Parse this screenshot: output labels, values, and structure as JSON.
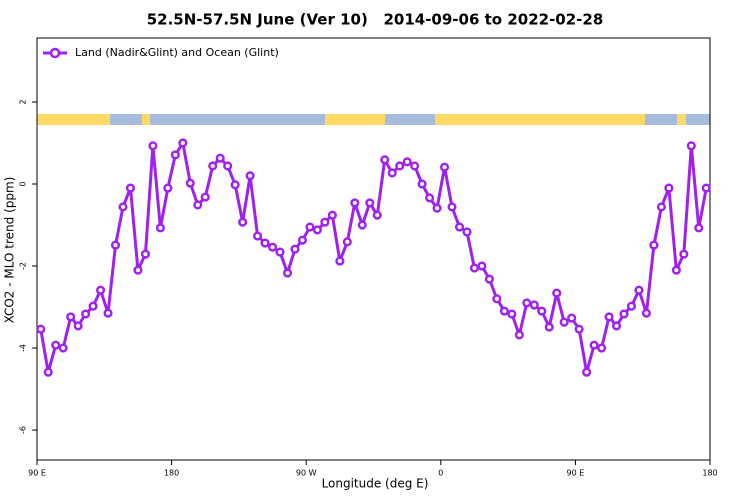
{
  "chart_data": {
    "type": "line",
    "title": "52.5N-57.5N June (Ver 10)   2014-09-06 to 2022-02-28",
    "x_label": "Longitude (deg E)",
    "y_label": "XCO2 - MLO trend (ppm)",
    "x": [
      92.5,
      97.5,
      102.5,
      107.5,
      112.5,
      117.5,
      122.5,
      127.5,
      132.5,
      137.5,
      142.5,
      147.5,
      152.5,
      157.5,
      162.5,
      167.5,
      172.5,
      177.5,
      182.5,
      187.5,
      192.5,
      197.5,
      202.5,
      207.5,
      212.5,
      217.5,
      222.5,
      227.5,
      232.5,
      237.5,
      242.5,
      247.5,
      252.5,
      257.5,
      262.5,
      267.5,
      272.5,
      277.5,
      282.5,
      287.5,
      292.5,
      297.5,
      302.5,
      307.5,
      312.5,
      317.5,
      322.5,
      327.5,
      332.5,
      337.5,
      342.5,
      347.5,
      352.5,
      357.5,
      362.5,
      367.5,
      372.5,
      377.5,
      382.5,
      387.5,
      392.5,
      397.5,
      402.5,
      407.5,
      412.5,
      417.5,
      422.5,
      427.5,
      432.5,
      437.5,
      442.5,
      447.5,
      452.5,
      457.5,
      462.5,
      467.5,
      472.5,
      477.5,
      482.5,
      487.5,
      492.5,
      497.5,
      502.5,
      507.5,
      512.5,
      517.5,
      522.5,
      527.5,
      532.5,
      537.5
    ],
    "series": [
      {
        "name": "Land (Nadir&Glint) and Ocean (Glint)",
        "color": "#a020f0",
        "values": [
          -3.54,
          -4.59,
          -3.93,
          -4.0,
          -3.24,
          -3.46,
          -3.17,
          -2.98,
          -2.59,
          -3.15,
          -1.49,
          -0.56,
          -0.1,
          -2.1,
          -1.71,
          0.93,
          -1.07,
          -0.1,
          0.71,
          1.0,
          0.02,
          -0.51,
          -0.32,
          0.44,
          0.63,
          0.44,
          -0.02,
          -0.93,
          0.2,
          -1.27,
          -1.44,
          -1.54,
          -1.66,
          -2.17,
          -1.59,
          -1.37,
          -1.05,
          -1.12,
          -0.93,
          -0.76,
          -1.88,
          -1.41,
          -0.46,
          -1.0,
          -0.46,
          -0.76,
          0.59,
          0.27,
          0.44,
          0.54,
          0.44,
          0.0,
          -0.34,
          -0.59,
          0.41,
          -0.56,
          -1.05,
          -1.17,
          -2.05,
          -2.0,
          -2.32,
          -2.8,
          -3.1,
          -3.17,
          -3.68,
          -2.9,
          -2.95,
          -3.1,
          -3.49,
          -2.66,
          -3.37,
          -3.27,
          -3.54,
          -4.59,
          -3.93,
          -4.0,
          -3.24,
          -3.46,
          -3.17,
          -2.98,
          -2.59,
          -3.15,
          -1.49,
          -0.56,
          -0.1,
          -2.1,
          -1.71,
          0.93,
          -1.07,
          -0.1
        ]
      }
    ],
    "xlim": [
      90,
      540
    ],
    "xticks": [
      {
        "value": 90,
        "label": "90 E"
      },
      {
        "value": 180,
        "label": "180"
      },
      {
        "value": 270,
        "label": "90 W"
      },
      {
        "value": 360,
        "label": "0"
      },
      {
        "value": 450,
        "label": "90 E"
      },
      {
        "value": 540,
        "label": "180"
      }
    ],
    "ylim": [
      -6.73,
      3.56
    ],
    "yticks": [
      -6,
      -4,
      -2,
      0,
      2
    ],
    "legend": "top-left"
  }
}
